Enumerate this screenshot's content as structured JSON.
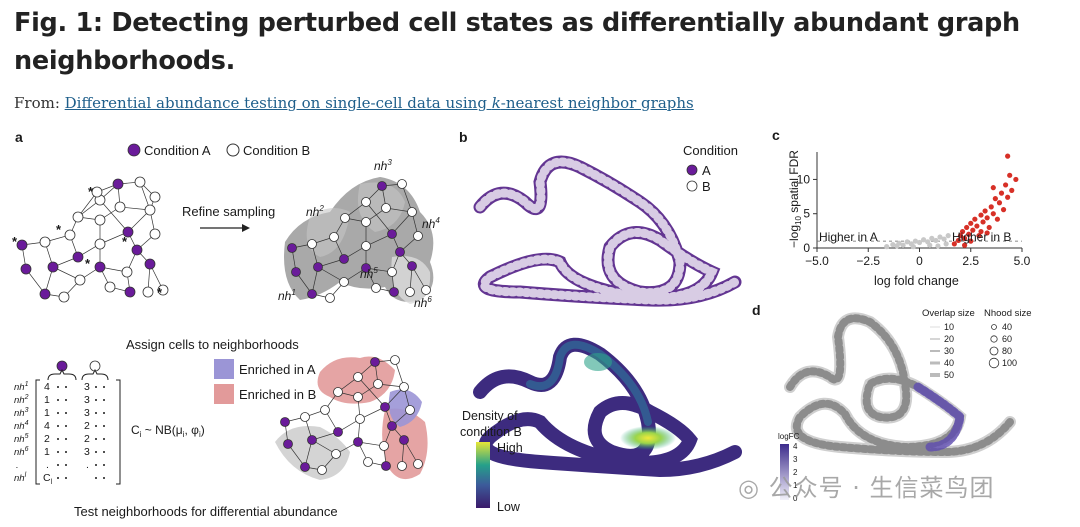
{
  "header": {
    "title": "Fig. 1: Detecting perturbed cell states as differentially abundant graph neighborhoods.",
    "from_label": "From: ",
    "link_text_pre": "Differential abundance testing on single-cell data using ",
    "link_text_k": "k",
    "link_text_post": "-nearest neighbor graphs"
  },
  "panel_a": {
    "letter": "a",
    "legend_a": "Condition A",
    "legend_b": "Condition B",
    "refine_label": "Refine sampling",
    "nh_labels": [
      "nh",
      "nh",
      "nh",
      "nh",
      "nh",
      "nh"
    ],
    "nh_sup": [
      "1",
      "2",
      "3",
      "4",
      "5",
      "6"
    ],
    "assign_label": "Assign cells to neighborhoods",
    "enriched_a": "Enriched in A",
    "enriched_b": "Enriched in B",
    "matrix_rows": [
      "nh",
      "nh",
      "nh",
      "nh",
      "nh",
      "nh",
      ".",
      "nh"
    ],
    "matrix_sup": [
      "1",
      "2",
      "3",
      "4",
      "5",
      "6",
      "",
      "l"
    ],
    "matrix_col1": [
      "4",
      "1",
      "1",
      "4",
      "2",
      "1",
      ".",
      "C"
    ],
    "matrix_col1_sub": [
      "",
      "",
      "",
      "",
      "",
      "",
      "",
      "l"
    ],
    "matrix_col2": [
      "3",
      "3",
      "3",
      "2",
      "2",
      "3",
      ".",
      ""
    ],
    "nb_formula": "C",
    "nb_formula_sub": "i",
    "nb_formula_rest": " ~ NB(μ",
    "nb_mu_sub": "i",
    "nb_phi": ", φ",
    "nb_phi_sub": "i",
    "nb_close": ")",
    "test_label": "Test neighborhoods for differential abundance",
    "colors": {
      "condition_a": "#6a1b9a",
      "enriched_a": "#9b95d6",
      "enriched_b": "#e29a9a"
    }
  },
  "panel_b": {
    "letter": "b",
    "legend_title": "Condition",
    "legend_a": "A",
    "legend_b": "B",
    "density_title_1": "Density of",
    "density_title_2": "condition B",
    "density_high": "High",
    "density_low": "Low"
  },
  "panel_c": {
    "letter": "c",
    "ylabel": "−log",
    "ylabel_sub": "10",
    "ylabel_rest": " spatial FDR",
    "xlabel": "log fold change",
    "higher_a": "Higher in A",
    "higher_b": "Higher in B",
    "x_ticks": [
      "−5.0",
      "−2.5",
      "0",
      "2.5",
      "5.0"
    ],
    "y_ticks": [
      "0",
      "5",
      "10"
    ],
    "colors": {
      "significant": "#d73027",
      "non_significant": "#c8c8c8"
    }
  },
  "panel_d": {
    "letter": "d",
    "overlap_title": "Overlap size",
    "overlap_values": [
      "10",
      "20",
      "30",
      "40",
      "50"
    ],
    "nhood_title": "Nhood size",
    "nhood_values": [
      "40",
      "60",
      "80",
      "100"
    ],
    "logfc_title": "logFC",
    "logfc_ticks": [
      "4",
      "3",
      "2",
      "1",
      "0"
    ]
  },
  "chart_data": {
    "type": "scatter",
    "title": "",
    "xlabel": "log fold change",
    "ylabel": "−log10 spatial FDR",
    "xlim": [
      -5.0,
      5.0
    ],
    "ylim": [
      0,
      14
    ],
    "series": [
      {
        "name": "Higher in B",
        "points": [
          [
            1.7,
            0.6
          ],
          [
            1.9,
            1.1
          ],
          [
            2.0,
            1.8
          ],
          [
            2.1,
            2.4
          ],
          [
            2.2,
            1.4
          ],
          [
            2.3,
            3.0
          ],
          [
            2.4,
            2.0
          ],
          [
            2.5,
            3.6
          ],
          [
            2.5,
            1.0
          ],
          [
            2.6,
            2.6
          ],
          [
            2.7,
            4.2
          ],
          [
            2.8,
            3.2
          ],
          [
            2.9,
            1.8
          ],
          [
            3.0,
            4.8
          ],
          [
            3.0,
            2.4
          ],
          [
            3.1,
            3.8
          ],
          [
            3.2,
            5.4
          ],
          [
            3.3,
            4.4
          ],
          [
            3.4,
            3.0
          ],
          [
            3.5,
            6.0
          ],
          [
            3.6,
            5.0
          ],
          [
            3.7,
            7.2
          ],
          [
            3.8,
            4.2
          ],
          [
            3.9,
            6.6
          ],
          [
            4.0,
            8.0
          ],
          [
            4.1,
            5.6
          ],
          [
            4.2,
            9.2
          ],
          [
            4.3,
            7.4
          ],
          [
            4.4,
            10.6
          ],
          [
            4.5,
            8.4
          ],
          [
            4.7,
            10.0
          ],
          [
            4.3,
            13.4
          ],
          [
            3.6,
            8.8
          ],
          [
            2.2,
            0.4
          ],
          [
            3.3,
            2.2
          ]
        ]
      },
      {
        "name": "Higher in A",
        "points": [
          [
            -1.6,
            0.2
          ],
          [
            -1.3,
            0.5
          ],
          [
            -1.0,
            0.7
          ],
          [
            -0.8,
            0.4
          ],
          [
            -0.6,
            0.9
          ],
          [
            -0.4,
            0.6
          ],
          [
            -0.2,
            1.0
          ],
          [
            0.0,
            0.8
          ],
          [
            0.2,
            1.2
          ],
          [
            0.4,
            0.9
          ],
          [
            0.6,
            1.4
          ],
          [
            0.8,
            1.1
          ],
          [
            1.0,
            1.6
          ],
          [
            1.2,
            1.3
          ],
          [
            1.4,
            1.8
          ],
          [
            -1.1,
            0.3
          ],
          [
            0.5,
            0.4
          ],
          [
            1.3,
            0.6
          ],
          [
            -0.3,
            0.2
          ],
          [
            0.9,
            0.3
          ]
        ]
      }
    ],
    "threshold_y": 1.0,
    "grid": false,
    "legend": "none"
  }
}
